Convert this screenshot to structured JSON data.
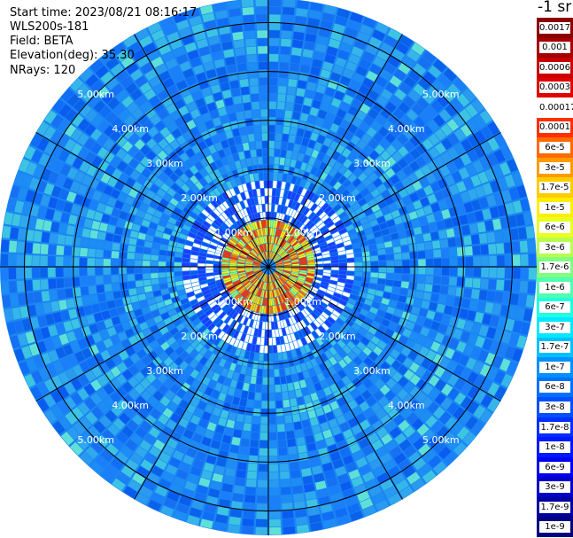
{
  "header": {
    "start_time": "Start time: 2023/08/21 08:16:17",
    "instrument": "WLS200s-181",
    "field": "Field: BETA",
    "elevation": "Elevation(deg): 35.30",
    "nrays": "NRays: 120"
  },
  "colorbar": {
    "unit_label": "-1 sr",
    "labels": [
      "0.0017",
      "0.001",
      "0.0006",
      "0.0003",
      "0.00017",
      "0.0001",
      "6e-5",
      "3e-5",
      "1.7e-5",
      "1e-5",
      "6e-6",
      "3e-6",
      "1.7e-6",
      "1e-6",
      "6e-7",
      "3e-7",
      "1.7e-7",
      "1e-7",
      "6e-8",
      "3e-8",
      "1.7e-8",
      "1e-8",
      "6e-9",
      "3e-9",
      "1.7e-9",
      "1e-9"
    ],
    "colors": [
      "#8b0000",
      "#a50000",
      "#c80000",
      "#e00000",
      "#ffffff",
      "#ff3000",
      "#ff6a00",
      "#ff9a00",
      "#ffcc00",
      "#ffee00",
      "#e8ff20",
      "#b8ff50",
      "#80ff80",
      "#50ffb0",
      "#20ffe0",
      "#00e8ff",
      "#00c0ff",
      "#0090ff",
      "#0070ff",
      "#0050ff",
      "#0030ff",
      "#0018ff",
      "#0000f0",
      "#0000c8",
      "#0000a0",
      "#000080"
    ]
  },
  "ring_labels": [
    "1.00km",
    "2.00km",
    "3.00km",
    "4.00km",
    "5.00km"
  ],
  "scan": {
    "field": "BETA",
    "elevation_deg": 35.3,
    "n_rays": 120,
    "max_range_km": 5.5
  }
}
